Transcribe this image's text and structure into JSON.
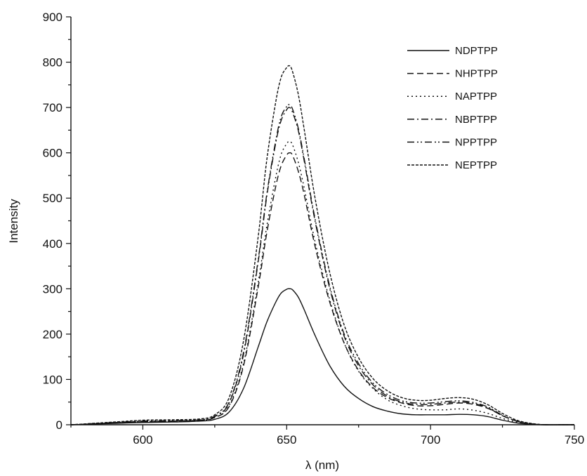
{
  "chart_data": {
    "type": "line",
    "xlabel": "λ (nm)",
    "ylabel": "Intensity",
    "xlim": [
      575,
      750
    ],
    "ylim": [
      0,
      900
    ],
    "x_ticks": [
      600,
      650,
      700,
      750
    ],
    "y_ticks": [
      0,
      100,
      200,
      300,
      400,
      500,
      600,
      700,
      800,
      900
    ],
    "legend_position": "top-right",
    "grid": false,
    "x": [
      575,
      590,
      600,
      610,
      620,
      625,
      630,
      635,
      640,
      643,
      646,
      648,
      650,
      651,
      652,
      654,
      656,
      660,
      665,
      670,
      675,
      680,
      685,
      690,
      695,
      700,
      705,
      710,
      715,
      720,
      725,
      730,
      735,
      740,
      745,
      750
    ],
    "series": [
      {
        "name": "NDPTPP",
        "dash": "solid",
        "values": [
          0,
          3,
          5,
          6,
          8,
          12,
          28,
          80,
          170,
          225,
          268,
          290,
          299,
          300,
          298,
          282,
          255,
          195,
          130,
          85,
          58,
          40,
          30,
          24,
          22,
          22,
          22,
          23,
          22,
          18,
          10,
          4,
          1,
          0,
          0,
          0
        ]
      },
      {
        "name": "NHPTPP",
        "dash": "9,5",
        "values": [
          0,
          4,
          7,
          8,
          10,
          16,
          40,
          130,
          300,
          420,
          520,
          570,
          595,
          600,
          595,
          560,
          510,
          390,
          270,
          180,
          120,
          82,
          60,
          48,
          42,
          42,
          45,
          48,
          45,
          36,
          20,
          8,
          2,
          0,
          0,
          0
        ]
      },
      {
        "name": "NAPTPP",
        "dash": "2,4",
        "values": [
          0,
          4,
          7,
          8,
          10,
          16,
          42,
          135,
          310,
          435,
          540,
          595,
          620,
          625,
          618,
          580,
          525,
          400,
          275,
          180,
          118,
          80,
          55,
          42,
          35,
          33,
          33,
          35,
          32,
          25,
          14,
          6,
          1,
          0,
          0,
          0
        ]
      },
      {
        "name": "NBPTPP",
        "dash": "10,4,2,4",
        "values": [
          0,
          4,
          7,
          8,
          10,
          18,
          48,
          155,
          355,
          500,
          615,
          670,
          695,
          700,
          690,
          650,
          585,
          445,
          300,
          195,
          130,
          88,
          63,
          50,
          45,
          45,
          48,
          50,
          47,
          37,
          20,
          8,
          2,
          0,
          0,
          0
        ]
      },
      {
        "name": "NPPTPP",
        "dash": "10,4,2,3,2,4",
        "values": [
          0,
          5,
          8,
          9,
          11,
          19,
          50,
          160,
          360,
          505,
          620,
          678,
          702,
          706,
          697,
          655,
          590,
          450,
          305,
          200,
          135,
          92,
          67,
          53,
          48,
          48,
          51,
          53,
          49,
          39,
          21,
          8,
          2,
          0,
          0,
          0
        ]
      },
      {
        "name": "NEPTPP",
        "dash": "4,2",
        "values": [
          0,
          6,
          10,
          11,
          13,
          22,
          60,
          185,
          410,
          580,
          705,
          765,
          788,
          792,
          780,
          730,
          655,
          495,
          335,
          220,
          148,
          102,
          75,
          60,
          54,
          54,
          58,
          60,
          56,
          44,
          25,
          10,
          3,
          0,
          0,
          0
        ]
      }
    ]
  }
}
